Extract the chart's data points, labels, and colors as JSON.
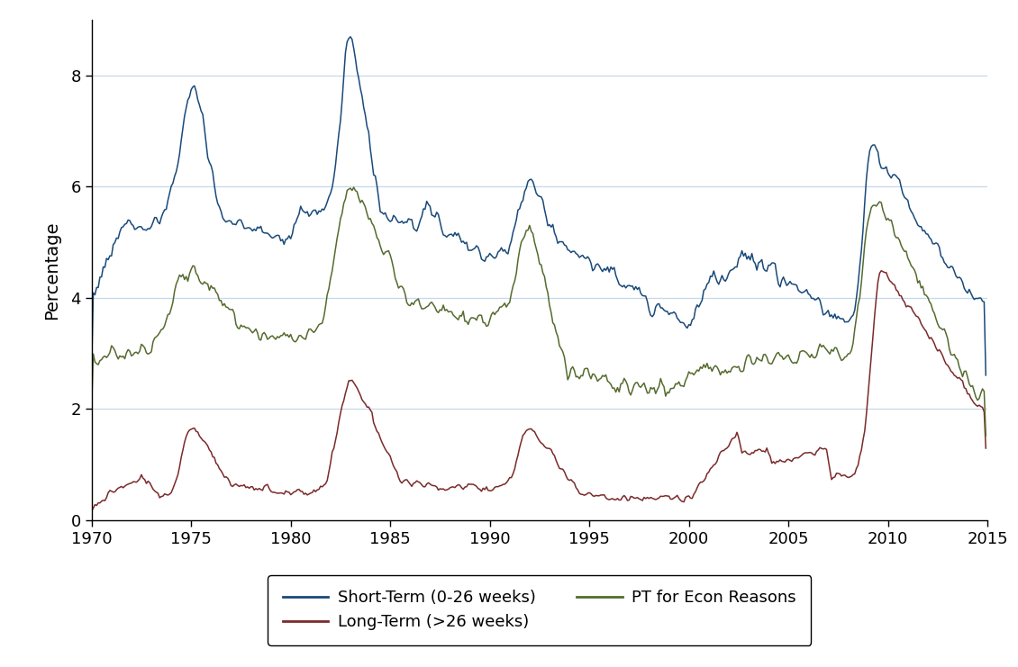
{
  "title": "",
  "ylabel": "Percentage",
  "xlabel": "",
  "xlim": [
    1970,
    2015
  ],
  "ylim": [
    0,
    9
  ],
  "yticks": [
    0,
    2,
    4,
    6,
    8
  ],
  "xticks": [
    1970,
    1975,
    1980,
    1985,
    1990,
    1995,
    2000,
    2005,
    2010,
    2015
  ],
  "colors": {
    "short_term": "#1a4a7a",
    "long_term": "#7b2a2a",
    "pt_econ": "#556b2f"
  },
  "legend": {
    "short_term": "Short-Term (0-26 weeks)",
    "long_term": "Long-Term (>26 weeks)",
    "pt_econ": "PT for Econ Reasons"
  },
  "background_color": "#ffffff",
  "grid_color": "#c5d8e8",
  "linewidth": 1.1
}
